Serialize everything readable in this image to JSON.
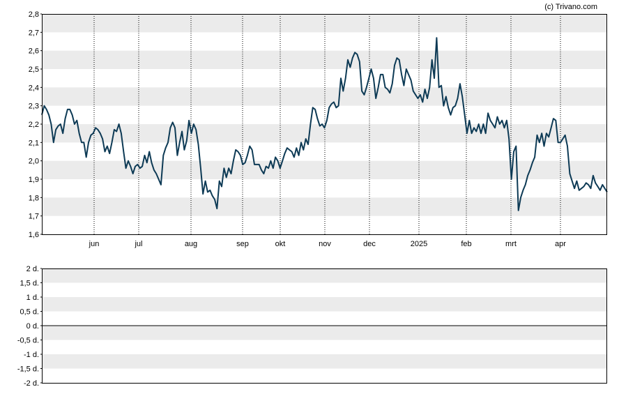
{
  "credit": "(c) Trivano.com",
  "colors": {
    "line": "#0d3a55",
    "band": "#ebebeb",
    "vgrid": "#000000",
    "frame": "#000000"
  },
  "chart_data": [
    {
      "type": "line",
      "title": "",
      "xlabel": "",
      "ylabel": "",
      "ylim": [
        1.6,
        2.8
      ],
      "y_ticks": [
        "1,6",
        "1,7",
        "1,8",
        "1,9",
        "2,0",
        "2,1",
        "2,2",
        "2,3",
        "2,4",
        "2,5",
        "2,6",
        "2,7",
        "2,8"
      ],
      "x_ticks": [
        "jun",
        "jul",
        "aug",
        "sep",
        "okt",
        "nov",
        "dec",
        "2025",
        "feb",
        "mrt",
        "apr"
      ],
      "grid": "alternating horizontal bands, dotted vertical lines at month starts",
      "series": [
        {
          "values": [
            2.25,
            2.3,
            2.28,
            2.25,
            2.2,
            2.1,
            2.17,
            2.19,
            2.2,
            2.15,
            2.23,
            2.28,
            2.28,
            2.25,
            2.2,
            2.22,
            2.15,
            2.1,
            2.1,
            2.02,
            2.1,
            2.14,
            2.15,
            2.18,
            2.17,
            2.15,
            2.12,
            2.05,
            2.08,
            2.04,
            2.1,
            2.17,
            2.16,
            2.2,
            2.15,
            2.05,
            1.96,
            2.0,
            1.97,
            1.93,
            1.97,
            1.98,
            1.96,
            1.97,
            2.03,
            1.99,
            2.05,
            1.99,
            1.95,
            1.93,
            1.9,
            1.87,
            2.03,
            2.07,
            2.1,
            2.18,
            2.21,
            2.18,
            2.03,
            2.1,
            2.16,
            2.06,
            2.11,
            2.22,
            2.15,
            2.2,
            2.17,
            2.09,
            1.96,
            1.82,
            1.89,
            1.83,
            1.84,
            1.81,
            1.79,
            1.74,
            1.89,
            1.86,
            1.96,
            1.91,
            1.96,
            1.93,
            2.0,
            2.06,
            2.05,
            2.03,
            1.98,
            1.99,
            2.03,
            2.08,
            2.06,
            1.98,
            1.98,
            1.98,
            1.95,
            1.93,
            1.97,
            1.96,
            2.0,
            1.96,
            2.02,
            2.0,
            1.96,
            2.0,
            2.04,
            2.07,
            2.06,
            2.05,
            2.02,
            2.07,
            2.03,
            2.1,
            2.06,
            2.12,
            2.09,
            2.2,
            2.29,
            2.28,
            2.23,
            2.19,
            2.2,
            2.18,
            2.22,
            2.29,
            2.31,
            2.32,
            2.29,
            2.3,
            2.45,
            2.38,
            2.45,
            2.55,
            2.51,
            2.56,
            2.59,
            2.58,
            2.54,
            2.38,
            2.36,
            2.4,
            2.45,
            2.5,
            2.45,
            2.34,
            2.4,
            2.47,
            2.47,
            2.4,
            2.39,
            2.37,
            2.42,
            2.52,
            2.56,
            2.55,
            2.47,
            2.41,
            2.5,
            2.47,
            2.44,
            2.38,
            2.36,
            2.34,
            2.36,
            2.32,
            2.39,
            2.34,
            2.4,
            2.55,
            2.45,
            2.67,
            2.4,
            2.41,
            2.3,
            2.35,
            2.29,
            2.25,
            2.29,
            2.3,
            2.34,
            2.42,
            2.35,
            2.25,
            2.15,
            2.22,
            2.15,
            2.18,
            2.16,
            2.2,
            2.15,
            2.2,
            2.15,
            2.26,
            2.22,
            2.2,
            2.18,
            2.24,
            2.2,
            2.22,
            2.18,
            2.22,
            2.12,
            1.9,
            2.05,
            2.08,
            1.73,
            1.8,
            1.84,
            1.87,
            1.92,
            1.95,
            1.99,
            2.02,
            2.14,
            2.1,
            2.15,
            2.08,
            2.15,
            2.13,
            2.18,
            2.23,
            2.22,
            2.1,
            2.1,
            2.12,
            2.14,
            2.08,
            1.93,
            1.89,
            1.85,
            1.89,
            1.84,
            1.85,
            1.86,
            1.88,
            1.87,
            1.85,
            1.92,
            1.88,
            1.86,
            1.84,
            1.87,
            1.85,
            1.83
          ]
        }
      ]
    },
    {
      "type": "line",
      "title": "",
      "xlabel": "",
      "ylabel": "",
      "ylim": [
        -2,
        2
      ],
      "y_ticks": [
        "2 d.",
        "1,5 d.",
        "1 d.",
        "0,5 d.",
        "0 d.",
        "-0,5 d.",
        "-1 d.",
        "-1,5 d.",
        "-2 d."
      ],
      "series": []
    }
  ]
}
